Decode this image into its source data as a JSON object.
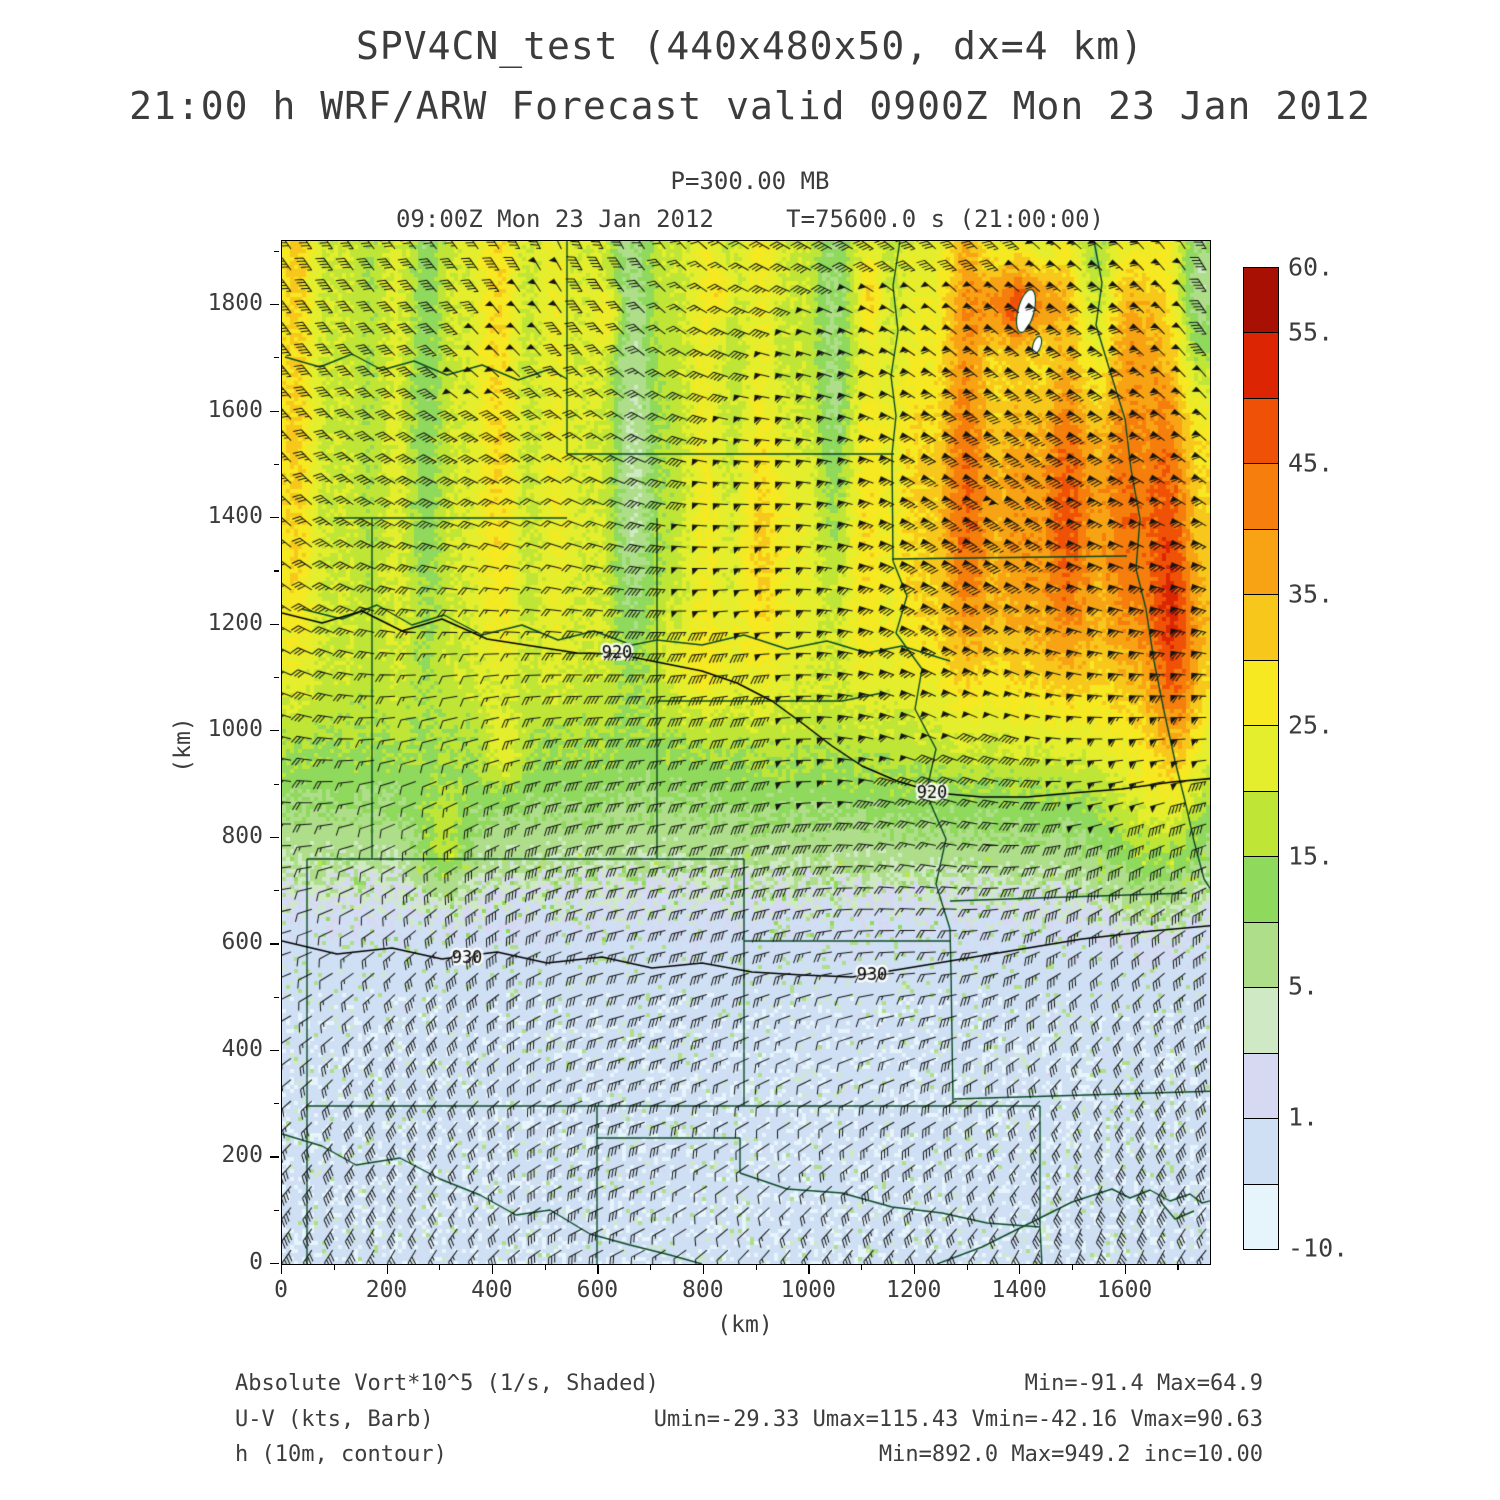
{
  "header": {
    "line1": "SPV4CN_test (440x480x50, dx=4 km)",
    "line2": "21:00 h WRF/ARW Forecast valid 0900Z Mon 23 Jan 2012",
    "line3": "P=300.00 MB",
    "line4": "09:00Z Mon 23 Jan 2012     T=75600.0 s (21:00:00)"
  },
  "chart_data": {
    "type": "heatmap",
    "title": "SPV4CN_test (440x480x50, dx=4 km)",
    "subtitle": "21:00 h WRF/ARW Forecast valid 0900Z Mon 23 Jan 2012",
    "pressure_level": "P=300.00 MB",
    "valid_time": "09:00Z Mon 23 Jan 2012",
    "model_time": "T=75600.0 s (21:00:00)",
    "xlabel": "(km)",
    "ylabel": "(km)",
    "xlim": [
      0,
      1760
    ],
    "ylim": [
      0,
      1920
    ],
    "x_ticks": [
      0,
      200,
      400,
      600,
      800,
      1000,
      1200,
      1400,
      1600
    ],
    "y_ticks": [
      0,
      200,
      400,
      600,
      800,
      1000,
      1200,
      1400,
      1600,
      1800
    ],
    "shaded_field": "Absolute Vort*10^5 (1/s, Shaded)",
    "vector_field": "U-V (kts, Barb)",
    "contour_field": "h (10m, contour)",
    "stats": {
      "vort_min": -91.4,
      "vort_max": 64.9,
      "umin": -29.33,
      "umax": 115.43,
      "vmin": -42.16,
      "vmax": 90.63,
      "hmin": 892.0,
      "hmax": 949.2,
      "hinc": 10.0
    },
    "colorbar": {
      "labels": [
        "60.",
        "55.",
        "45.",
        "35.",
        "25.",
        "15.",
        "5.",
        "1.",
        "-10."
      ],
      "levels": [
        -10,
        -5,
        1,
        3,
        5,
        10,
        15,
        20,
        25,
        30,
        35,
        40,
        45,
        50,
        55,
        60
      ],
      "colors": [
        "#e6f4fb",
        "#cfe0f4",
        "#d7d9f2",
        "#cfe9c4",
        "#aede8a",
        "#8fd95c",
        "#bfe636",
        "#e4ee2c",
        "#f6e821",
        "#f8c71b",
        "#f8a313",
        "#f57e0c",
        "#ef5206",
        "#dc2603",
        "#a81004"
      ]
    },
    "contour_labels": [
      {
        "text": "920",
        "x": 335,
        "y": 413
      },
      {
        "text": "920",
        "x": 650,
        "y": 553
      },
      {
        "text": "930",
        "x": 185,
        "y": 718
      },
      {
        "text": "930",
        "x": 590,
        "y": 735
      }
    ],
    "map_colors": {
      "state_borders": "#0b4a26",
      "height_contours": "#000000",
      "wind_barbs": "#141414",
      "lake_fill": "#ffffff"
    }
  },
  "legend": {
    "rows": [
      {
        "left": "Absolute Vort*10^5 (1/s, Shaded)",
        "right": "Min=-91.4 Max=64.9"
      },
      {
        "left": "U-V (kts, Barb)",
        "right": "Umin=-29.33 Umax=115.43 Vmin=-42.16 Vmax=90.63"
      },
      {
        "left": "h (10m, contour)",
        "right": "Min=892.0 Max=949.2 inc=10.00"
      }
    ]
  }
}
